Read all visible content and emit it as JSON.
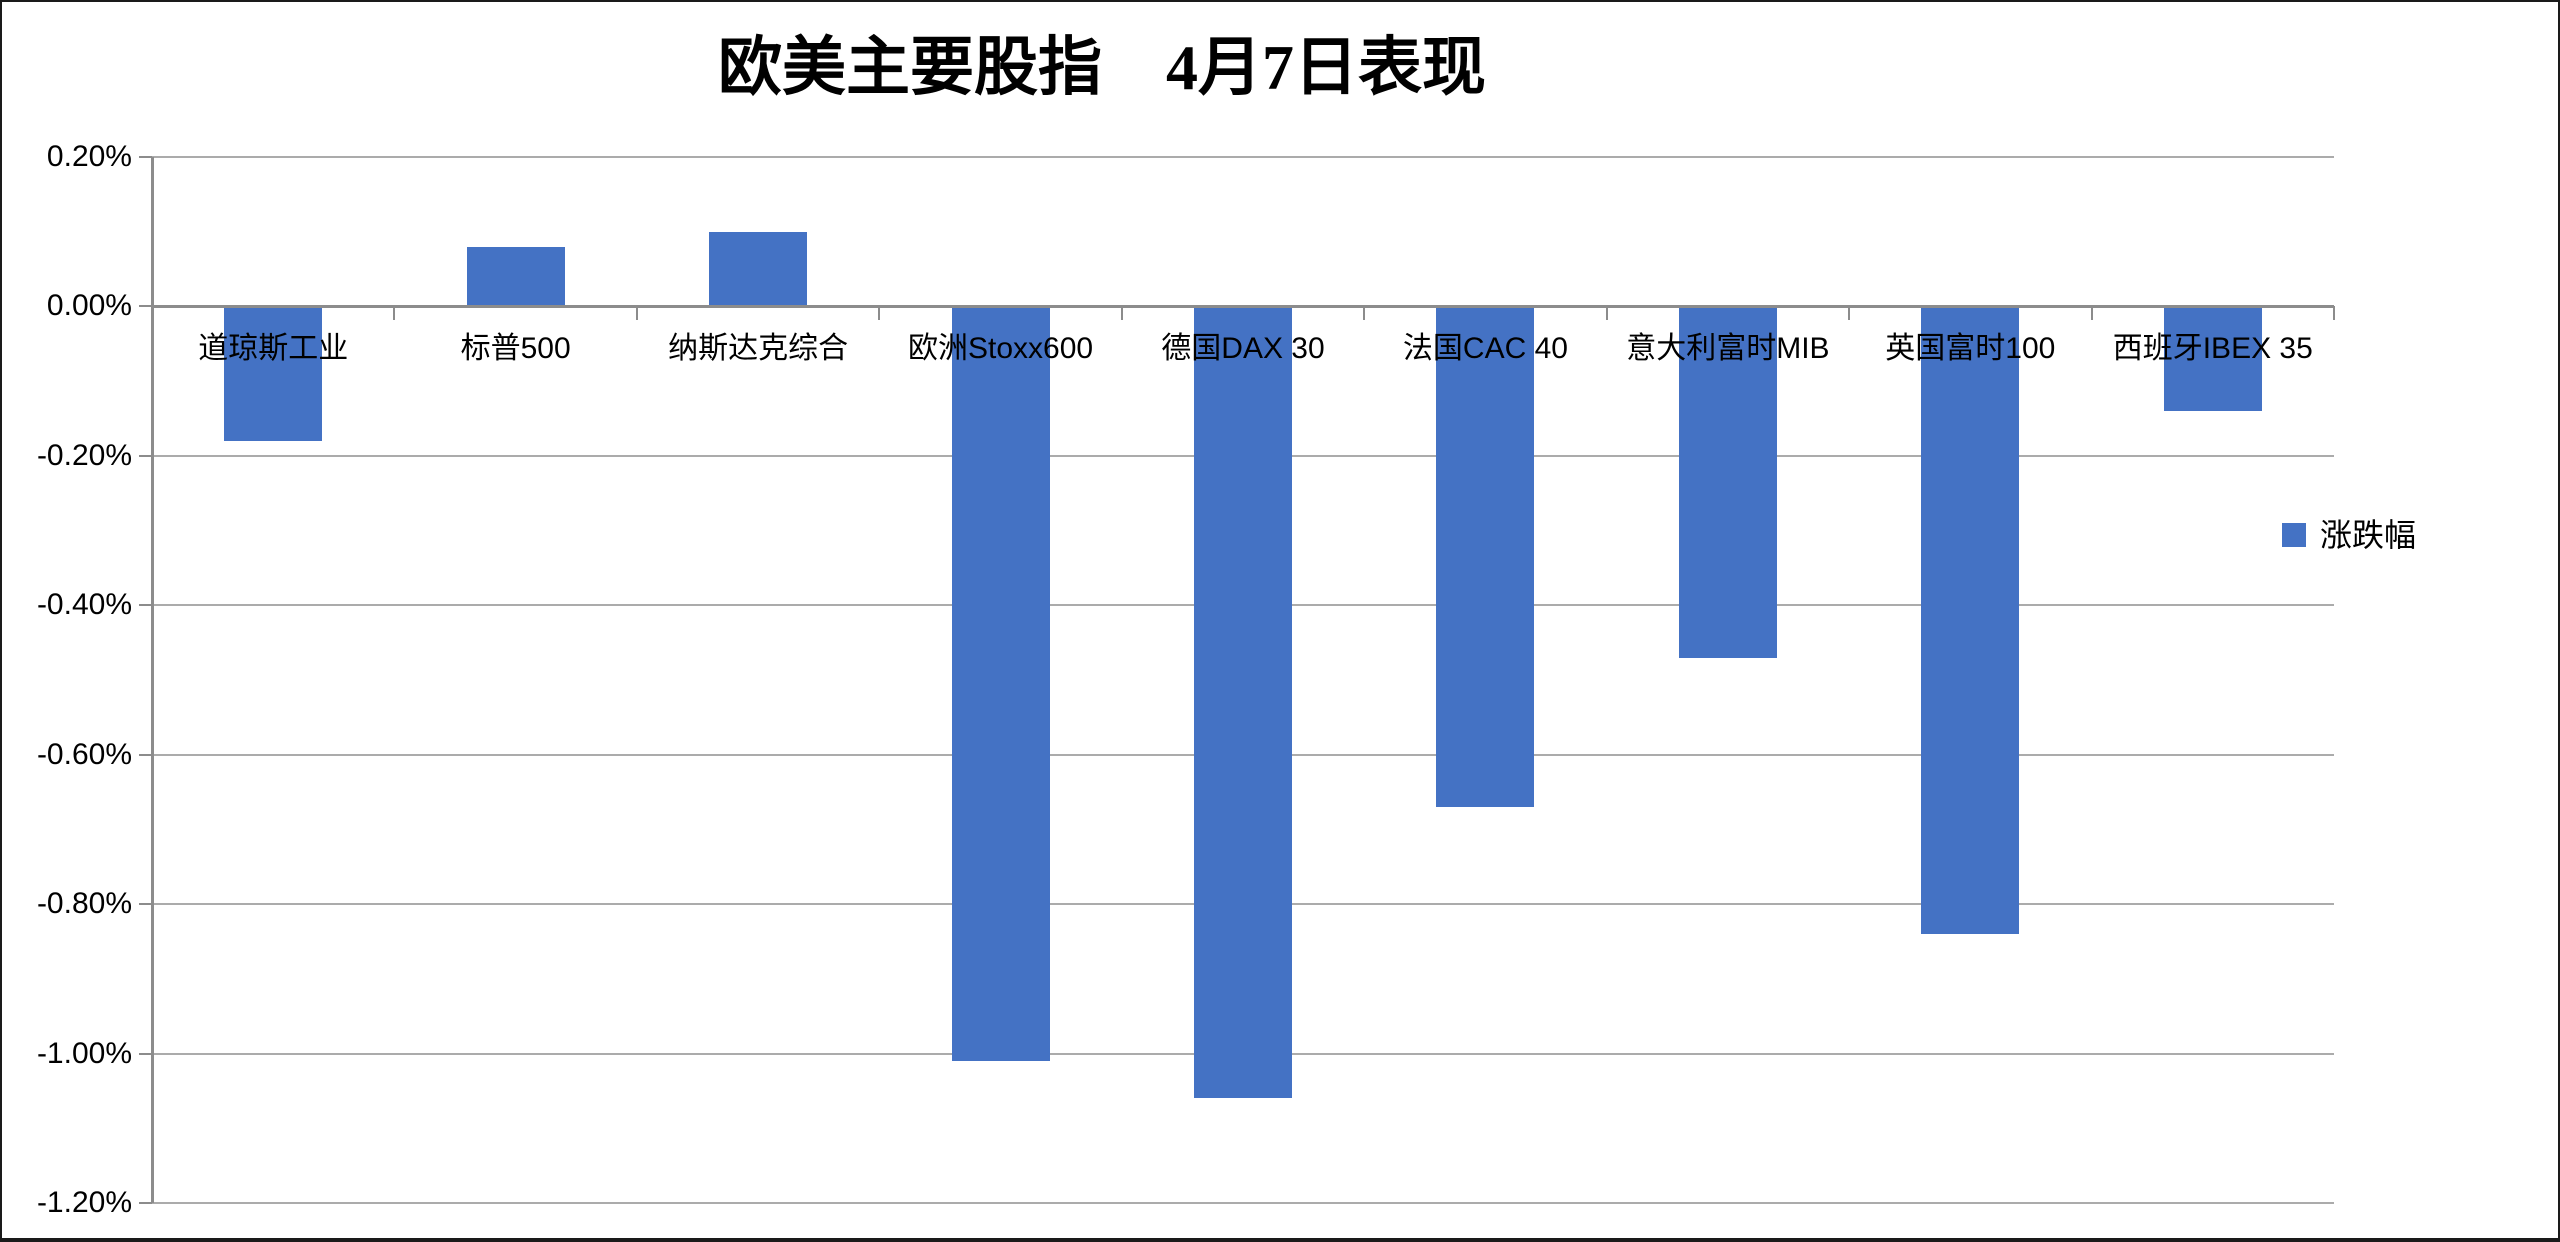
{
  "title": "欧美主要股指　4月7日表现",
  "legend": {
    "label": "涨跌幅",
    "swatch_color": "#4472C4"
  },
  "colors": {
    "bar": "#4472C4",
    "gridline": "#ABABAB",
    "axis_line": "#8C8C8C",
    "text": "#000000",
    "frame_border": "#1A1A1A",
    "background": "#FFFFFF"
  },
  "chart_data": {
    "type": "bar",
    "title": "欧美主要股指　4月7日表现",
    "categories": [
      "道琼斯工业",
      "标普500",
      "纳斯达克综合",
      "欧洲Stoxx600",
      "德国DAX 30",
      "法国CAC 40",
      "意大利富时MIB",
      "英国富时100",
      "西班牙IBEX 35"
    ],
    "series": [
      {
        "name": "涨跌幅",
        "values": [
          -0.18,
          0.08,
          0.1,
          -1.01,
          -1.06,
          -0.67,
          -0.47,
          -0.84,
          -0.14
        ]
      }
    ],
    "values_unit": "%",
    "xlabel": "",
    "ylabel": "",
    "ylim": [
      -1.2,
      0.2
    ],
    "y_tick_step": 0.2,
    "y_tick_labels": [
      "0.20%",
      "0.00%",
      "-0.20%",
      "-0.40%",
      "-0.60%",
      "-0.80%",
      "-1.00%",
      "-1.20%"
    ],
    "grid": true,
    "legend_position": "right",
    "category_labels_position": "low"
  }
}
